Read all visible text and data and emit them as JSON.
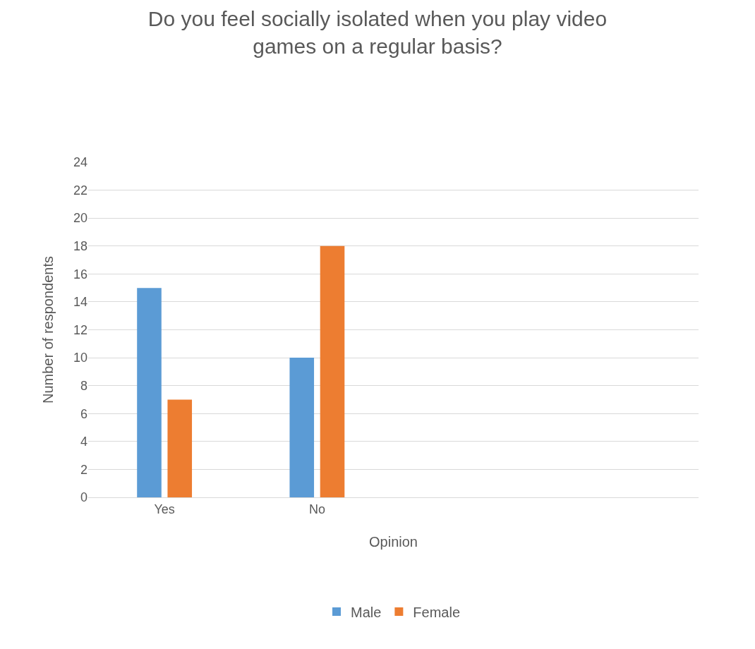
{
  "chart_data": {
    "type": "bar",
    "title": "Do you feel socially isolated when you play video games on a regular basis?",
    "xlabel": "Opinion",
    "ylabel": "Number of respondents",
    "categories": [
      "Yes",
      "No",
      null,
      null
    ],
    "series": [
      {
        "name": "Male",
        "color": "#5b9bd5",
        "values": [
          15,
          10,
          null,
          null
        ]
      },
      {
        "name": "Female",
        "color": "#ed7d31",
        "values": [
          7,
          18,
          null,
          null
        ]
      }
    ],
    "ylim": [
      0,
      24
    ],
    "yticks": [
      0,
      2,
      4,
      6,
      8,
      10,
      12,
      14,
      16,
      18,
      20,
      22,
      24
    ],
    "grid": "y",
    "legend": "bottom"
  }
}
